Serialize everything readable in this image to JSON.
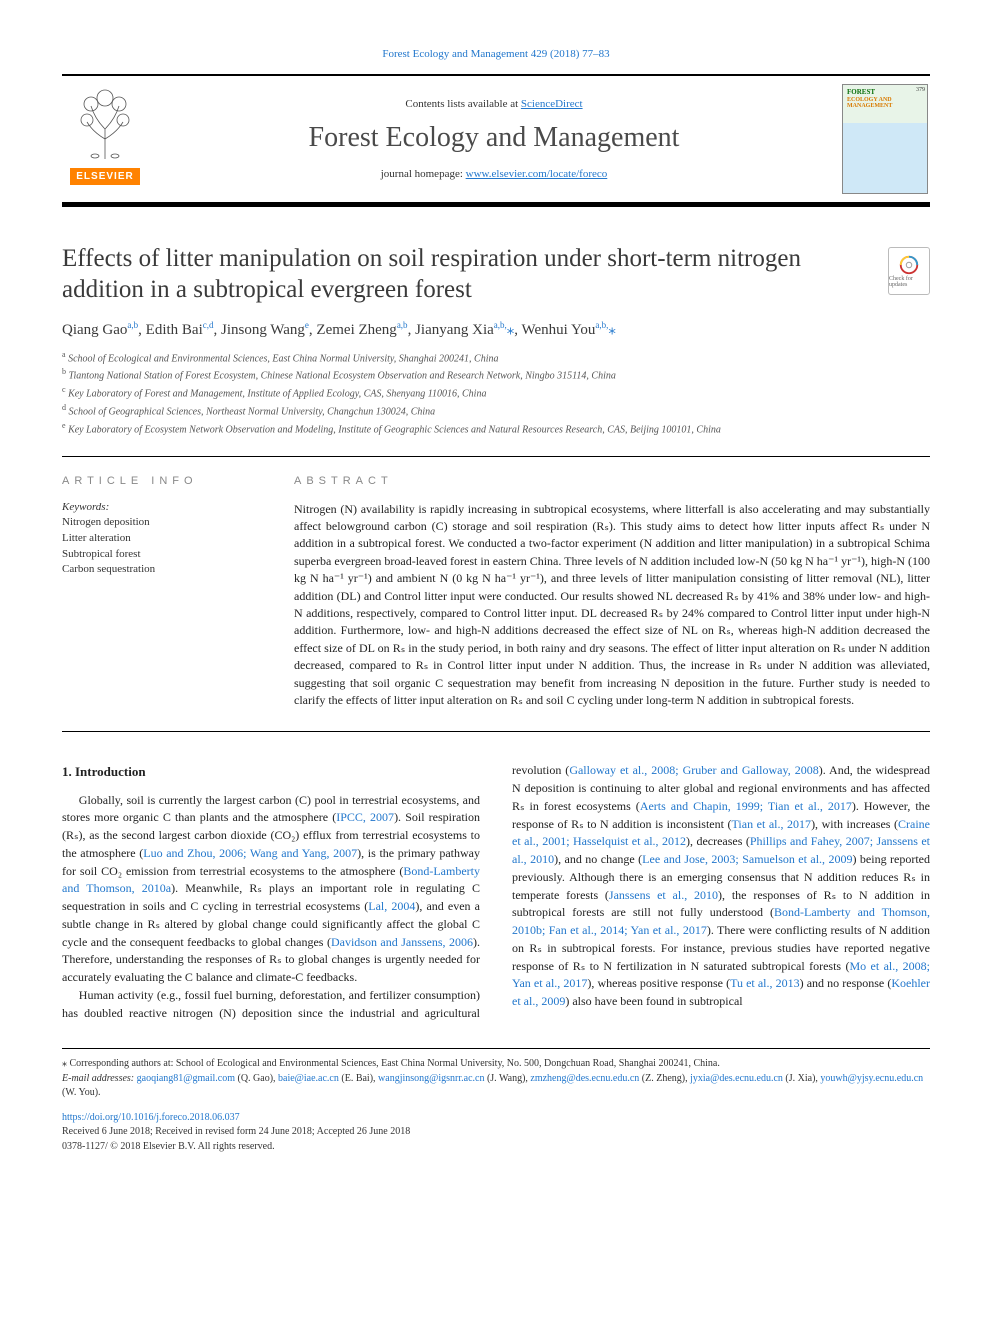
{
  "top_link": "Forest Ecology and Management 429 (2018) 77–83",
  "header": {
    "contents_prefix": "Contents lists available at ",
    "contents_link": "ScienceDirect",
    "journal_name": "Forest Ecology and Management",
    "homepage_prefix": "journal homepage: ",
    "homepage_url": "www.elsevier.com/locate/foreco",
    "elsevier_label": "ELSEVIER",
    "cover_title": "FOREST",
    "cover_sub": "ECOLOGY AND MANAGEMENT",
    "cover_issue": "379"
  },
  "check_updates_label": "Check for updates",
  "title": "Effects of litter manipulation on soil respiration under short-term nitrogen addition in a subtropical evergreen forest",
  "authors_html": "Qiang Gao<sup>a,b</sup>, Edith Bai<sup>c,d</sup>, Jinsong Wang<sup>e</sup>, Zemei Zheng<sup>a,b</sup>, Jianyang Xia<sup>a,b,</sup><span class='ast'>⁎</span>, Wenhui You<sup>a,b,</sup><span class='ast'>⁎</span>",
  "affiliations": [
    {
      "sup": "a",
      "text": "School of Ecological and Environmental Sciences, East China Normal University, Shanghai 200241, China"
    },
    {
      "sup": "b",
      "text": "Tiantong National Station of Forest Ecosystem, Chinese National Ecosystem Observation and Research Network, Ningbo 315114, China"
    },
    {
      "sup": "c",
      "text": "Key Laboratory of Forest and Management, Institute of Applied Ecology, CAS, Shenyang 110016, China"
    },
    {
      "sup": "d",
      "text": "School of Geographical Sciences, Northeast Normal University, Changchun 130024, China"
    },
    {
      "sup": "e",
      "text": "Key Laboratory of Ecosystem Network Observation and Modeling, Institute of Geographic Sciences and Natural Resources Research, CAS, Beijing 100101, China"
    }
  ],
  "article_info_heading": "ARTICLE INFO",
  "abstract_heading": "ABSTRACT",
  "keywords_label": "Keywords:",
  "keywords": [
    "Nitrogen deposition",
    "Litter alteration",
    "Subtropical forest",
    "Carbon sequestration"
  ],
  "abstract": "Nitrogen (N) availability is rapidly increasing in subtropical ecosystems, where litterfall is also accelerating and may substantially affect belowground carbon (C) storage and soil respiration (Rₛ). This study aims to detect how litter inputs affect Rₛ under N addition in a subtropical forest. We conducted a two-factor experiment (N addition and litter manipulation) in a subtropical Schima superba evergreen broad-leaved forest in eastern China. Three levels of N addition included low-N (50 kg N ha⁻¹ yr⁻¹), high-N (100 kg N ha⁻¹ yr⁻¹) and ambient N (0 kg N ha⁻¹ yr⁻¹), and three levels of litter manipulation consisting of litter removal (NL), litter addition (DL) and Control litter input were conducted. Our results showed NL decreased Rₛ by 41% and 38% under low- and high-N additions, respectively, compared to Control litter input. DL decreased Rₛ by 24% compared to Control litter input under high-N addition. Furthermore, low- and high-N additions decreased the effect size of NL on Rₛ, whereas high-N addition decreased the effect size of DL on Rₛ in the study period, in both rainy and dry seasons. The effect of litter input alteration on Rₛ under N addition decreased, compared to Rₛ in Control litter input under N addition. Thus, the increase in Rₛ under N addition was alleviated, suggesting that soil organic C sequestration may benefit from increasing N deposition in the future. Further study is needed to clarify the effects of litter input alteration on Rₛ and soil C cycling under long-term N addition in subtropical forests.",
  "section1_heading": "1. Introduction",
  "intro_p1_parts": [
    {
      "t": "Globally, soil is currently the largest carbon (C) pool in terrestrial ecosystems, and stores more organic C than plants and the atmosphere ("
    },
    {
      "ref": "IPCC, 2007"
    },
    {
      "t": "). Soil respiration (Rₛ), as the second largest carbon dioxide (CO₂) efflux from terrestrial ecosystems to the atmosphere ("
    },
    {
      "ref": "Luo and Zhou, 2006; Wang and Yang, 2007"
    },
    {
      "t": "), is the primary pathway for soil CO₂ emission from terrestrial ecosystems to the atmosphere ("
    },
    {
      "ref": "Bond-Lamberty and Thomson, 2010a"
    },
    {
      "t": "). Meanwhile, Rₛ plays an important role in regulating C sequestration in soils and C cycling in terrestrial ecosystems ("
    },
    {
      "ref": "Lal, 2004"
    },
    {
      "t": "), and even a subtle change in Rₛ altered by global change could significantly affect the global C cycle and the consequent feedbacks to global changes ("
    },
    {
      "ref": "Davidson and Janssens, 2006"
    },
    {
      "t": "). Therefore, understanding the responses of Rₛ to global changes is urgently needed for accurately evaluating the C balance and climate-C feedbacks."
    }
  ],
  "intro_p2_parts": [
    {
      "t": "Human activity (e.g., fossil fuel burning, deforestation, and fertilizer consumption) has doubled reactive nitrogen (N) deposition since the industrial and agricultural revolution ("
    },
    {
      "ref": "Galloway et al., 2008; Gruber and Galloway, 2008"
    },
    {
      "t": "). And, the widespread N deposition is continuing to alter global and regional environments and has affected Rₛ in forest ecosystems ("
    },
    {
      "ref": "Aerts and Chapin, 1999; Tian et al., 2017"
    },
    {
      "t": "). However, the response of Rₛ to N addition is inconsistent ("
    },
    {
      "ref": "Tian et al., 2017"
    },
    {
      "t": "), with increases ("
    },
    {
      "ref": "Craine et al., 2001; Hasselquist et al., 2012"
    },
    {
      "t": "), decreases ("
    },
    {
      "ref": "Phillips and Fahey, 2007; Janssens et al., 2010"
    },
    {
      "t": "), and no change ("
    },
    {
      "ref": "Lee and Jose, 2003; Samuelson et al., 2009"
    },
    {
      "t": ") being reported previously. Although there is an emerging consensus that N addition reduces Rₛ in temperate forests ("
    },
    {
      "ref": "Janssens et al., 2010"
    },
    {
      "t": "), the responses of Rₛ to N addition in subtropical forests are still not fully understood ("
    },
    {
      "ref": "Bond-Lamberty and Thomson, 2010b; Fan et al., 2014; Yan et al., 2017"
    },
    {
      "t": "). There were conflicting results of N addition on Rₛ in subtropical forests. For instance, previous studies have reported negative response of Rₛ to N fertilization in N saturated subtropical forests ("
    },
    {
      "ref": "Mo et al., 2008; Yan et al., 2017"
    },
    {
      "t": "), whereas positive response ("
    },
    {
      "ref": "Tu et al., 2013"
    },
    {
      "t": ") and no response ("
    },
    {
      "ref": "Koehler et al., 2009"
    },
    {
      "t": ") also have been found in subtropical"
    }
  ],
  "footnotes": {
    "corresponding": "⁎ Corresponding authors at: School of Ecological and Environmental Sciences, East China Normal University, No. 500, Dongchuan Road, Shanghai 200241, China.",
    "email_label": "E-mail addresses: ",
    "emails": [
      {
        "addr": "gaoqiang81@gmail.com",
        "who": "(Q. Gao)"
      },
      {
        "addr": "baie@iae.ac.cn",
        "who": "(E. Bai)"
      },
      {
        "addr": "wangjinsong@igsnrr.ac.cn",
        "who": "(J. Wang)"
      },
      {
        "addr": "zmzheng@des.ecnu.edu.cn",
        "who": "(Z. Zheng)"
      },
      {
        "addr": "jyxia@des.ecnu.edu.cn",
        "who": "(J. Xia)"
      },
      {
        "addr": "youwh@yjsy.ecnu.edu.cn",
        "who": "(W. You)"
      }
    ]
  },
  "doi": {
    "url": "https://doi.org/10.1016/j.foreco.2018.06.037",
    "received": "Received 6 June 2018; Received in revised form 24 June 2018; Accepted 26 June 2018",
    "issn": "0378-1127/ © 2018 Elsevier B.V. All rights reserved."
  },
  "colors": {
    "link": "#2277cc",
    "elsevier_orange": "#ff8200",
    "heading_gray": "#888888",
    "text": "#222222"
  }
}
